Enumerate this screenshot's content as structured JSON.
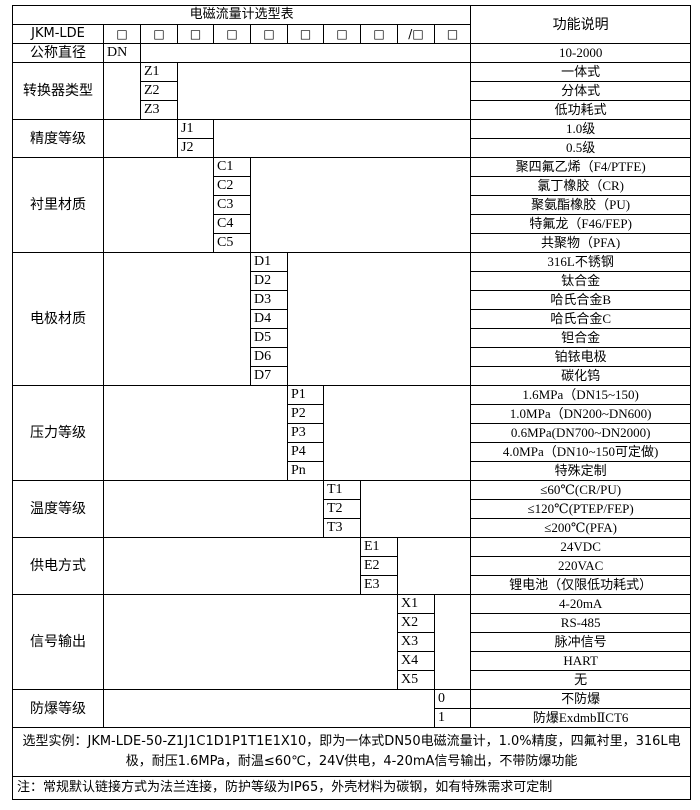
{
  "header": {
    "title": "电磁流量计选型表",
    "model": "JKM-LDE",
    "boxes": [
      "□",
      "□",
      "□",
      "□",
      "□",
      "□",
      "□",
      "□",
      "/□",
      "□"
    ],
    "function_header": "功能说明"
  },
  "groups": [
    {
      "label": "公称直径",
      "codes": [
        "DN"
      ],
      "functions": [
        "10-2000"
      ]
    },
    {
      "label": "转换器类型",
      "codes": [
        "Z1",
        "Z2",
        "Z3"
      ],
      "functions": [
        "一体式",
        "分体式",
        "低功耗式"
      ]
    },
    {
      "label": "精度等级",
      "codes": [
        "J1",
        "J2"
      ],
      "functions": [
        "1.0级",
        "0.5级"
      ]
    },
    {
      "label": "衬里材质",
      "codes": [
        "C1",
        "C2",
        "C3",
        "C4",
        "C5"
      ],
      "functions": [
        "聚四氟乙烯（F4/PTFE)",
        "氯丁橡胶（CR)",
        "聚氨酯橡胶（PU)",
        "特氟龙（F46/FEP)",
        "共聚物（PFA)"
      ]
    },
    {
      "label": "电极材质",
      "codes": [
        "D1",
        "D2",
        "D3",
        "D4",
        "D5",
        "D6",
        "D7"
      ],
      "functions": [
        "316L不锈钢",
        "钛合金",
        "哈氏合金B",
        "哈氏合金C",
        "钽合金",
        "铂铱电极",
        "碳化钨"
      ]
    },
    {
      "label": "压力等级",
      "codes": [
        "P1",
        "P2",
        "P3",
        "P4",
        "Pn"
      ],
      "functions": [
        "1.6MPa（DN15~150)",
        "1.0MPa（DN200~DN600)",
        "0.6MPa(DN700~DN2000)",
        "4.0MPa（DN10~150可定做)",
        "特殊定制"
      ]
    },
    {
      "label": "温度等级",
      "codes": [
        "T1",
        "T2",
        "T3"
      ],
      "functions": [
        "≤60℃(CR/PU)",
        "≤120℃(PTEP/FEP)",
        "≤200℃(PFA)"
      ]
    },
    {
      "label": "供电方式",
      "codes": [
        "E1",
        "E2",
        "E3"
      ],
      "functions": [
        "24VDC",
        "220VAC",
        "锂电池（仅限低功耗式）"
      ]
    },
    {
      "label": "信号输出",
      "codes": [
        "X1",
        "X2",
        "X3",
        "X4",
        "X5"
      ],
      "functions": [
        "4-20mA",
        "RS-485",
        "脉冲信号",
        "HART",
        "无"
      ]
    },
    {
      "label": "防爆等级",
      "codes": [
        "0",
        "1"
      ],
      "functions": [
        "不防爆",
        "防爆ExdmbⅡCT6"
      ]
    }
  ],
  "notes": {
    "example": "选型实例：JKM-LDE-50-Z1J1C1D1P1T1E1X10，即为一体式DN50电磁流量计，1.0%精度，四氟衬里，316L电极，耐压1.6MPa，耐温≤60℃，24V供电，4-20mA信号输出，不带防爆功能",
    "note": "注：常规默认链接方式为法兰连接，防护等级为IP65，外壳材料为碳钢，如有特殊需求可定制"
  }
}
